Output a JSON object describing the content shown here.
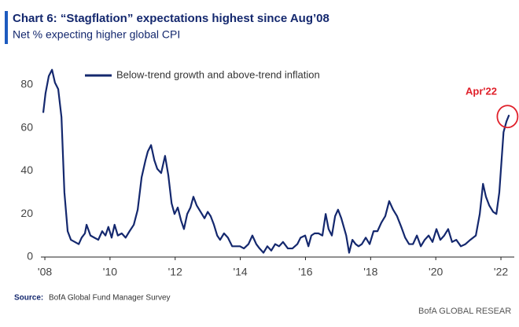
{
  "chart_data": {
    "type": "line",
    "title": "Chart 6: “Stagflation” expectations highest since Aug’08",
    "subtitle": "Net % expecting higher global CPI",
    "annotation": "Apr'22",
    "source_label": "Source:",
    "source": "BofA Global Fund Manager Survey",
    "footer": "BofA GLOBAL RESEAR",
    "xlim": [
      2007.9,
      2022.4
    ],
    "xticks": [
      {
        "value": 2008,
        "label": "'08"
      },
      {
        "value": 2010,
        "label": "'10"
      },
      {
        "value": 2012,
        "label": "'12"
      },
      {
        "value": 2014,
        "label": "'14"
      },
      {
        "value": 2016,
        "label": "'16"
      },
      {
        "value": 2018,
        "label": "'18"
      },
      {
        "value": 2020,
        "label": "'20"
      },
      {
        "value": 2022,
        "label": "'22"
      }
    ],
    "ylim": [
      0,
      90
    ],
    "yticks": [
      0,
      20,
      40,
      60,
      80
    ],
    "grid": false,
    "legend": "top-left",
    "x": [
      2007.95,
      2008.02,
      2008.12,
      2008.22,
      2008.31,
      2008.41,
      2008.51,
      2008.6,
      2008.7,
      2008.8,
      2008.92,
      2009.04,
      2009.13,
      2009.23,
      2009.28,
      2009.4,
      2009.52,
      2009.64,
      2009.76,
      2009.86,
      2009.95,
      2010.05,
      2010.14,
      2010.24,
      2010.36,
      2010.48,
      2010.6,
      2010.73,
      2010.85,
      2010.97,
      2011.09,
      2011.16,
      2011.26,
      2011.36,
      2011.45,
      2011.57,
      2011.69,
      2011.79,
      2011.89,
      2011.98,
      2012.08,
      2012.18,
      2012.27,
      2012.37,
      2012.47,
      2012.56,
      2012.66,
      2012.78,
      2012.9,
      2013.0,
      2013.09,
      2013.19,
      2013.29,
      2013.38,
      2013.5,
      2013.62,
      2013.75,
      2013.87,
      2013.99,
      2014.11,
      2014.25,
      2014.37,
      2014.49,
      2014.59,
      2014.71,
      2014.83,
      2014.95,
      2015.07,
      2015.19,
      2015.31,
      2015.46,
      2015.6,
      2015.75,
      2015.85,
      2015.99,
      2016.09,
      2016.18,
      2016.28,
      2016.4,
      2016.52,
      2016.62,
      2016.71,
      2016.81,
      2016.91,
      2017.0,
      2017.1,
      2017.25,
      2017.34,
      2017.44,
      2017.54,
      2017.63,
      2017.73,
      2017.85,
      2017.97,
      2018.09,
      2018.21,
      2018.33,
      2018.45,
      2018.57,
      2018.69,
      2018.81,
      2018.94,
      2019.06,
      2019.18,
      2019.3,
      2019.42,
      2019.54,
      2019.66,
      2019.78,
      2019.9,
      2020.02,
      2020.14,
      2020.26,
      2020.38,
      2020.5,
      2020.63,
      2020.77,
      2020.91,
      2021.06,
      2021.23,
      2021.35,
      2021.45,
      2021.54,
      2021.64,
      2021.76,
      2021.86,
      2021.95,
      2022.08,
      2022.17,
      2022.25
    ],
    "series": [
      {
        "name": "Below-trend growth and above-trend inflation",
        "color": "#14286e",
        "values": [
          67,
          76,
          84,
          87,
          81,
          78,
          65,
          30,
          12,
          8,
          7,
          6,
          9,
          11,
          15,
          10,
          9,
          8,
          12,
          10,
          14,
          9,
          15,
          10,
          11,
          9,
          12,
          15,
          22,
          37,
          45,
          49,
          52,
          45,
          41,
          39,
          47,
          38,
          25,
          20,
          23,
          17,
          13,
          20,
          23,
          28,
          24,
          21,
          18,
          21,
          19,
          15,
          10,
          8,
          11,
          9,
          5,
          5,
          5,
          4,
          6,
          10,
          6,
          4,
          2,
          5,
          3,
          6,
          5,
          7,
          4,
          4,
          6,
          9,
          10,
          5,
          10,
          11,
          11,
          10,
          20,
          13,
          10,
          19,
          22,
          18,
          10,
          2,
          8,
          6,
          5,
          6,
          9,
          6,
          12,
          12,
          16,
          19,
          26,
          22,
          19,
          14,
          9,
          6,
          6,
          10,
          5,
          8,
          10,
          7,
          13,
          8,
          10,
          13,
          7,
          8,
          5,
          6,
          8,
          10,
          20,
          34,
          28,
          24,
          21,
          20,
          30,
          58,
          63,
          66
        ]
      }
    ]
  }
}
